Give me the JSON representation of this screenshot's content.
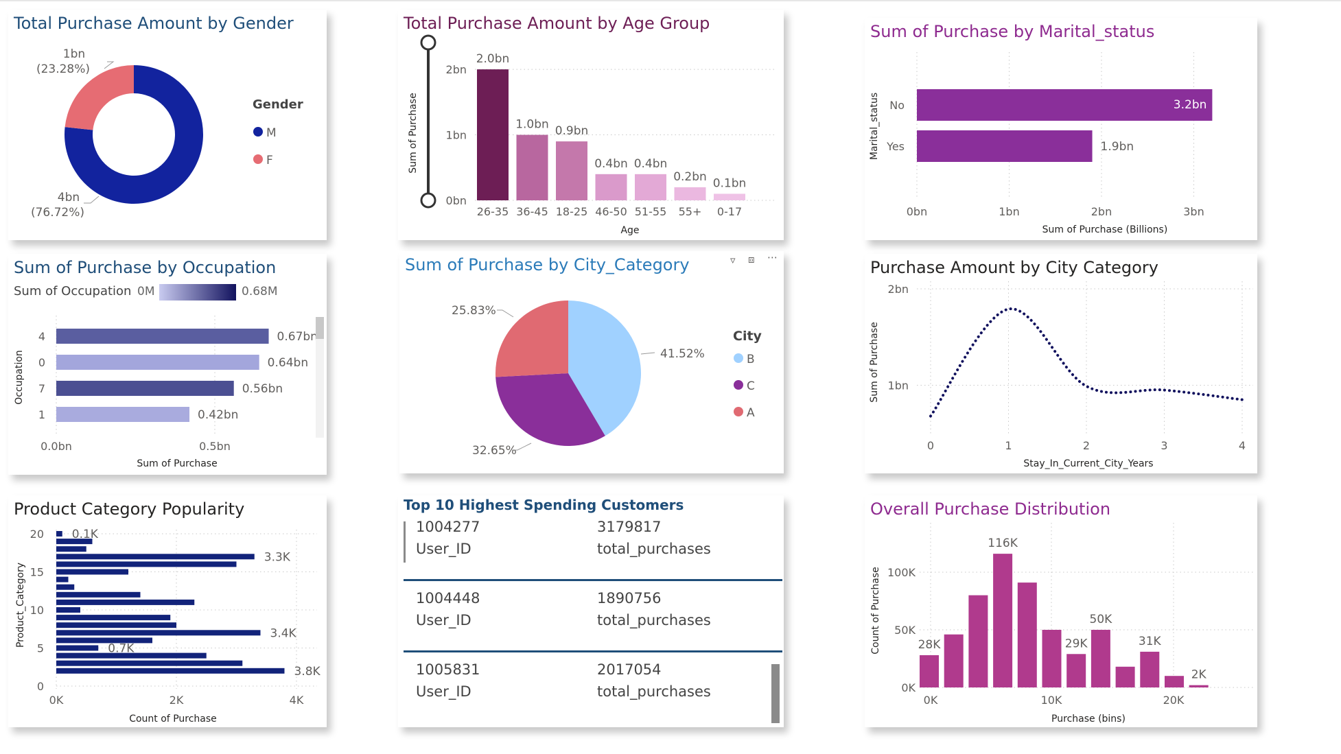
{
  "colors": {
    "title_blue": "#1f4e79",
    "title_purple": "#7a1d6a",
    "title_magenta": "#8e2a8f",
    "title_dark": "#252423",
    "navy": "#12239e",
    "salmon": "#e66c73",
    "city_b": "#a0d1ff",
    "city_c": "#8a2f9a",
    "city_a": "#e06a72",
    "magenta_bar": "#b03a8d"
  },
  "charts": {
    "gender": {
      "title": "Total Purchase Amount by Gender",
      "legend_title": "Gender",
      "legend_items": [
        "M",
        "F"
      ],
      "label_m_value": "4bn",
      "label_m_pct": "(76.72%)",
      "label_f_value": "1bn",
      "label_f_pct": "(23.28%)"
    },
    "age": {
      "title": "Total Purchase Amount by Age Group",
      "ylabel": "Sum of Purchase",
      "xlabel": "Age",
      "yticks": [
        "0bn",
        "1bn",
        "2bn"
      ],
      "data_labels": [
        "2.0bn",
        "1.0bn",
        "0.9bn",
        "0.4bn",
        "0.4bn",
        "0.2bn",
        "0.1bn"
      ],
      "categories": [
        "26-35",
        "36-45",
        "18-25",
        "46-50",
        "51-55",
        "55+",
        "0-17"
      ]
    },
    "marital": {
      "title": "Sum of Purchase by Marital_status",
      "ylabel": "Marital_status",
      "xlabel": "Sum of Purchase (Billions)",
      "xticks": [
        "0bn",
        "1bn",
        "2bn",
        "3bn"
      ],
      "categories": [
        "No",
        "Yes"
      ],
      "data_labels": [
        "3.2bn",
        "1.9bn"
      ]
    },
    "occupation": {
      "title": "Sum of Purchase by Occupation",
      "legend_title": "Sum of Occupation",
      "legend_min": "0M",
      "legend_max": "0.68M",
      "ylabel": "Occupation",
      "xlabel": "Sum of Purchase",
      "xticks": [
        "0.0bn",
        "0.5bn"
      ],
      "categories": [
        "4",
        "0",
        "7",
        "1"
      ],
      "data_labels": [
        "0.67bn",
        "0.64bn",
        "0.56bn",
        "0.42bn"
      ]
    },
    "city": {
      "title": "Sum of Purchase by City_Category",
      "legend_title": "City",
      "legend_items": [
        "B",
        "C",
        "A"
      ],
      "data_labels": [
        "41.52%",
        "32.65%",
        "25.83%"
      ],
      "icons": [
        "filter-icon",
        "focus-mode-icon",
        "more-options-icon"
      ]
    },
    "stay": {
      "title": "Purchase Amount by City Category",
      "ylabel": "Sum of Purchase",
      "xlabel": "Stay_In_Current_City_Years",
      "yticks": [
        "1bn",
        "2bn"
      ],
      "xticks": [
        "0",
        "1",
        "2",
        "3",
        "4"
      ]
    },
    "product": {
      "title": "Product Category Popularity",
      "ylabel": "Product_Category",
      "xlabel": "Count of Purchase",
      "yticks": [
        "0",
        "5",
        "10",
        "15",
        "20"
      ],
      "xticks": [
        "0K",
        "2K",
        "4K"
      ],
      "data_labels": [
        "0.1K",
        "3.3K",
        "3.4K",
        "0.7K",
        "3.8K"
      ]
    },
    "customers": {
      "title": "Top 10 Highest Spending Customers",
      "rows": [
        {
          "user_id": "1004277",
          "total": "3179817",
          "user_label": "User_ID",
          "total_label": "total_purchases"
        },
        {
          "user_id": "1004448",
          "total": "1890756",
          "user_label": "User_ID",
          "total_label": "total_purchases"
        },
        {
          "user_id": "1005831",
          "total": "2017054",
          "user_label": "User_ID",
          "total_label": "total_purchases"
        }
      ]
    },
    "distribution": {
      "title": "Overall Purchase Distribution",
      "ylabel": "Count of Purchase",
      "xlabel": "Purchase (bins)",
      "yticks": [
        "0K",
        "50K",
        "100K"
      ],
      "xticks": [
        "0K",
        "10K",
        "20K"
      ],
      "data_labels": [
        "28K",
        "116K",
        "29K",
        "50K",
        "31K",
        "2K"
      ]
    }
  },
  "chart_data": [
    {
      "type": "pie",
      "title": "Total Purchase Amount by Gender",
      "donut": true,
      "categories": [
        "M",
        "F"
      ],
      "values": [
        76.72,
        23.28
      ],
      "colors": [
        "#12239e",
        "#e66c73"
      ]
    },
    {
      "type": "bar",
      "title": "Total Purchase Amount by Age Group",
      "xlabel": "Age",
      "ylabel": "Sum of Purchase",
      "categories": [
        "26-35",
        "36-45",
        "18-25",
        "46-50",
        "51-55",
        "55+",
        "0-17"
      ],
      "values": [
        2.0,
        1.0,
        0.9,
        0.4,
        0.4,
        0.2,
        0.1
      ],
      "ylim": [
        0,
        2.2
      ],
      "colors": [
        "#6d1e55",
        "#b8679f",
        "#c478ab",
        "#da9acb",
        "#e3a9d6",
        "#ebb8e0",
        "#efc2e6"
      ]
    },
    {
      "type": "bar",
      "orientation": "horizontal",
      "title": "Sum of Purchase by Marital_status",
      "xlabel": "Sum of Purchase (Billions)",
      "ylabel": "Marital_status",
      "categories": [
        "No",
        "Yes"
      ],
      "values": [
        3.2,
        1.9
      ],
      "xlim": [
        0,
        3.5
      ],
      "colors": [
        "#8a2f9a",
        "#8a2f9a"
      ]
    },
    {
      "type": "bar",
      "orientation": "horizontal",
      "title": "Sum of Purchase by Occupation",
      "xlabel": "Sum of Purchase",
      "ylabel": "Occupation",
      "categories": [
        "4",
        "0",
        "7",
        "1"
      ],
      "values": [
        0.67,
        0.64,
        0.56,
        0.42
      ],
      "xlim": [
        0,
        0.68
      ],
      "colors": [
        "#5a5ea0",
        "#a3a6dc",
        "#4b4f92",
        "#a9abde"
      ]
    },
    {
      "type": "pie",
      "title": "Sum of Purchase by City_Category",
      "categories": [
        "B",
        "C",
        "A"
      ],
      "values": [
        41.52,
        32.65,
        25.83
      ],
      "colors": [
        "#a0d1ff",
        "#8a2f9a",
        "#e06a72"
      ]
    },
    {
      "type": "line",
      "title": "Purchase Amount by City Category",
      "xlabel": "Stay_In_Current_City_Years",
      "ylabel": "Sum of Purchase",
      "x": [
        0,
        1,
        2,
        3,
        4
      ],
      "y": [
        0.68,
        1.79,
        0.99,
        0.95,
        0.85
      ],
      "xlim": [
        0,
        4
      ],
      "ylim": [
        0.4,
        2.0
      ]
    },
    {
      "type": "bar",
      "orientation": "horizontal",
      "title": "Product Category Popularity",
      "xlabel": "Count of Purchase",
      "ylabel": "Product_Category",
      "categories": [
        "20",
        "19",
        "18",
        "17",
        "16",
        "15",
        "14",
        "13",
        "12",
        "11",
        "10",
        "9",
        "8",
        "7",
        "6",
        "5",
        "4",
        "3",
        "2",
        "1"
      ],
      "values": [
        0.1,
        0.6,
        0.5,
        3.3,
        3.0,
        1.2,
        0.2,
        0.3,
        1.4,
        2.3,
        0.4,
        1.9,
        2.0,
        3.4,
        1.6,
        0.7,
        2.5,
        3.1,
        3.8,
        0.0
      ],
      "xlim": [
        0,
        4.5
      ]
    },
    {
      "type": "table",
      "title": "Top 10 Highest Spending Customers",
      "columns": [
        "User_ID",
        "total_purchases"
      ],
      "rows": [
        [
          "1004277",
          "3179817"
        ],
        [
          "1004448",
          "1890756"
        ],
        [
          "1005831",
          "2017054"
        ]
      ]
    },
    {
      "type": "bar",
      "title": "Overall Purchase Distribution",
      "xlabel": "Purchase (bins)",
      "ylabel": "Count of Purchase",
      "x": [
        0,
        1,
        2,
        3,
        4,
        5,
        6,
        7,
        8,
        9,
        10,
        11
      ],
      "values": [
        28,
        46,
        80,
        116,
        91,
        50,
        29,
        50,
        18,
        31,
        10,
        2
      ],
      "ylim": [
        0,
        125
      ]
    }
  ]
}
